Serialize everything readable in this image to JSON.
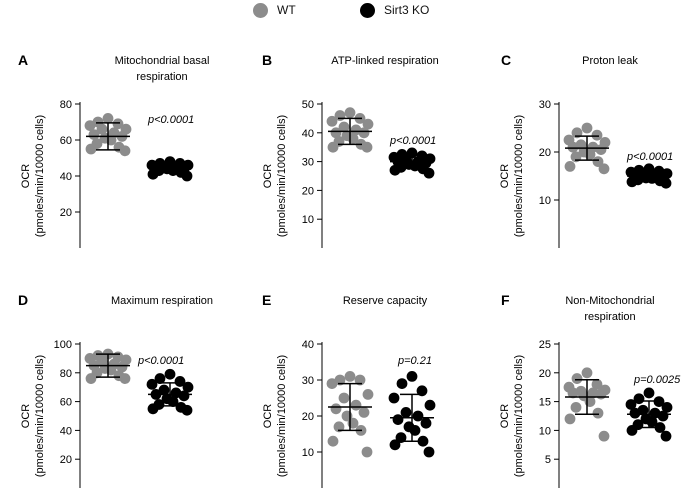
{
  "legend": [
    {
      "label": "WT",
      "color": "#8c8c8c"
    },
    {
      "label": "Sirt3 KO",
      "color": "#000000"
    }
  ],
  "chart_data": [
    {
      "panel": "A",
      "type": "scatter",
      "title": [
        "Mitochondrial basal",
        "respiration"
      ],
      "ylabel": [
        "OCR",
        "(pmoles/min/10000 cells)"
      ],
      "ylim": [
        0,
        80
      ],
      "yticks": [
        20,
        40,
        60,
        80
      ],
      "pvalue": "p<0.0001",
      "series": [
        {
          "name": "WT",
          "color": "#8c8c8c",
          "mean": 62,
          "sd": 7.5,
          "values": [
            72,
            70,
            69,
            68,
            66,
            66,
            64,
            63,
            62,
            61,
            60,
            58,
            56,
            55,
            54
          ]
        },
        {
          "name": "Sirt3 KO",
          "color": "#000000",
          "mean": 44.5,
          "sd": 2.5,
          "values": [
            48,
            47,
            47,
            46,
            46,
            45,
            45,
            45,
            44,
            44,
            43,
            43,
            42,
            41,
            40
          ]
        }
      ]
    },
    {
      "panel": "B",
      "type": "scatter",
      "title": [
        "ATP-linked respiration"
      ],
      "ylabel": [
        "OCR",
        "(pmoles/min/10000 cells)"
      ],
      "ylim": [
        0,
        50
      ],
      "yticks": [
        10,
        20,
        30,
        40,
        50
      ],
      "pvalue": "p<0.0001",
      "series": [
        {
          "name": "WT",
          "color": "#8c8c8c",
          "mean": 40.5,
          "sd": 4.5,
          "values": [
            47,
            46,
            45,
            44,
            43,
            42,
            41,
            40,
            40,
            39,
            38,
            37,
            36,
            35,
            35
          ]
        },
        {
          "name": "Sirt3 KO",
          "color": "#000000",
          "mean": 30,
          "sd": 2.2,
          "values": [
            33,
            32.5,
            32,
            31.5,
            31,
            30.5,
            30,
            30,
            29.5,
            29,
            28.5,
            28,
            27.5,
            27,
            26
          ]
        }
      ]
    },
    {
      "panel": "C",
      "type": "scatter",
      "title": [
        "Proton leak"
      ],
      "ylabel": [
        "OCR",
        "(pmoles/min/10000 cells)"
      ],
      "ylim": [
        0,
        30
      ],
      "yticks": [
        10,
        20,
        30
      ],
      "pvalue": "p<0.0001",
      "series": [
        {
          "name": "WT",
          "color": "#8c8c8c",
          "mean": 20.8,
          "sd": 2.5,
          "values": [
            25,
            24,
            23.5,
            22.5,
            22,
            21.5,
            21,
            21,
            20.5,
            20,
            19.5,
            19,
            18,
            17,
            16.5
          ]
        },
        {
          "name": "Sirt3 KO",
          "color": "#000000",
          "mean": 15,
          "sd": 0.9,
          "values": [
            16.5,
            16.2,
            16,
            15.8,
            15.5,
            15.4,
            15.2,
            15,
            14.8,
            14.6,
            14.5,
            14.2,
            14,
            13.8,
            13.5
          ]
        }
      ]
    },
    {
      "panel": "D",
      "type": "scatter",
      "title": [
        "Maximum respiration"
      ],
      "ylabel": [
        "OCR",
        "(pmoles/min/10000 cells)"
      ],
      "ylim": [
        0,
        100
      ],
      "yticks": [
        20,
        40,
        60,
        80,
        100
      ],
      "pvalue": "p<0.0001",
      "series": [
        {
          "name": "WT",
          "color": "#8c8c8c",
          "mean": 85,
          "sd": 8,
          "values": [
            93,
            92,
            91,
            90,
            89,
            88,
            86,
            85,
            84,
            83,
            82,
            80,
            78,
            76,
            76
          ]
        },
        {
          "name": "Sirt3 KO",
          "color": "#000000",
          "mean": 65,
          "sd": 8,
          "values": [
            79,
            76,
            74,
            72,
            70,
            68,
            66,
            65,
            64,
            62,
            60,
            58,
            56,
            55,
            54
          ]
        }
      ]
    },
    {
      "panel": "E",
      "type": "scatter",
      "title": [
        "Reserve capacity"
      ],
      "ylabel": [
        "OCR",
        "(pmoles/min/10000 cells)"
      ],
      "ylim": [
        0,
        40
      ],
      "yticks": [
        10,
        20,
        30,
        40
      ],
      "pvalue": "p=0.21",
      "series": [
        {
          "name": "WT",
          "color": "#8c8c8c",
          "mean": 22.5,
          "sd": 6.5,
          "values": [
            31,
            30,
            30,
            29,
            26,
            25,
            23,
            22,
            21,
            20,
            18,
            17,
            16,
            13,
            10
          ]
        },
        {
          "name": "Sirt3 KO",
          "color": "#000000",
          "mean": 19.5,
          "sd": 6.5,
          "values": [
            31,
            29,
            27,
            25,
            23,
            21,
            20,
            19,
            18,
            17,
            16,
            14,
            13,
            12,
            10
          ]
        }
      ]
    },
    {
      "panel": "F",
      "type": "scatter",
      "title": [
        "Non-Mitochondrial",
        "respiration"
      ],
      "ylabel": [
        "OCR",
        "(pmoles/min/10000 cells)"
      ],
      "ylim": [
        0,
        25
      ],
      "yticks": [
        5,
        10,
        15,
        20,
        25
      ],
      "pvalue": "p=0.0025",
      "series": [
        {
          "name": "WT",
          "color": "#8c8c8c",
          "mean": 15.8,
          "sd": 3,
          "values": [
            20,
            19,
            18,
            17.5,
            17,
            16.8,
            16.5,
            16.5,
            16.3,
            16,
            15,
            14,
            13,
            12,
            9
          ]
        },
        {
          "name": "Sirt3 KO",
          "color": "#000000",
          "mean": 12.8,
          "sd": 2.3,
          "values": [
            16.5,
            15.5,
            15,
            14.5,
            14,
            13.5,
            13,
            13,
            12.5,
            12,
            11.5,
            11,
            10.5,
            10,
            9
          ]
        }
      ]
    }
  ]
}
